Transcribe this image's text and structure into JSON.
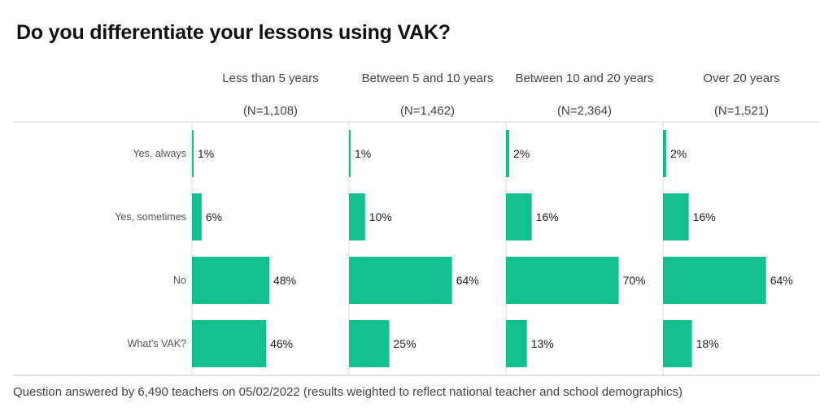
{
  "title": "Do you differentiate your lessons using VAK?",
  "footer": "Question answered by 6,490 teachers on 05/02/2022 (results weighted to reflect national teacher and school demographics)",
  "colors": {
    "bar": "#13bf8e",
    "gridline": "#d9d9d9"
  },
  "chart_data": {
    "type": "bar",
    "orientation": "horizontal",
    "title": "Do you differentiate your lessons using VAK?",
    "categories": [
      "Yes, always",
      "Yes, sometimes",
      "No",
      "What's VAK?"
    ],
    "value_format": "percent",
    "panels": [
      {
        "name": "Less than 5 years",
        "n_label": "(N=1,108)",
        "values": [
          1,
          6,
          48,
          46
        ]
      },
      {
        "name": "Between 5 and 10 years",
        "n_label": "(N=1,462)",
        "values": [
          1,
          10,
          64,
          25
        ]
      },
      {
        "name": "Between 10 and 20 years",
        "n_label": "(N=2,364)",
        "values": [
          2,
          16,
          70,
          13
        ]
      },
      {
        "name": "Over 20 years",
        "n_label": "(N=1,521)",
        "values": [
          2,
          16,
          64,
          18
        ]
      }
    ],
    "value_labels": [
      [
        "1%",
        "6%",
        "48%",
        "46%"
      ],
      [
        "1%",
        "10%",
        "64%",
        "25%"
      ],
      [
        "2%",
        "16%",
        "70%",
        "13%"
      ],
      [
        "2%",
        "16%",
        "64%",
        "18%"
      ]
    ]
  }
}
